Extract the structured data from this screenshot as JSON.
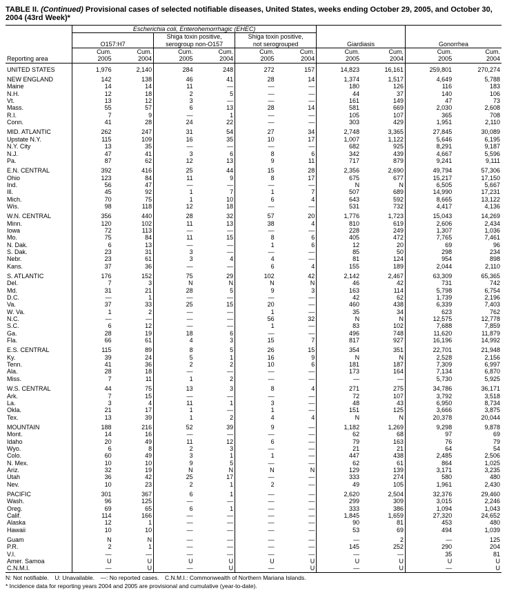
{
  "title": "TABLE II. (Continued) Provisional cases of selected notifiable diseases, United States, weeks ending October 29, 2005, and October 30, 2004 (43rd Week)*",
  "super_header": "Escherichia coli, Enterohemorrhagic (EHEC)",
  "groups": [
    "O157:H7",
    "Shiga toxin positive, serogroup non-O157",
    "Shiga toxin positive, not serogrouped",
    "Giardiasis",
    "Gonorrhea"
  ],
  "col_labels": {
    "area": "Reporting area",
    "c05": "Cum. 2005",
    "c04": "Cum. 2004"
  },
  "footnotes": [
    "N: Not notifiable. U: Unavailable. —: No reported cases. C.N.M.I.: Commonwealth of Northern Mariana Islands.",
    "* Incidence data for reporting years 2004 and 2005 are provisional and cumulative (year-to-date)."
  ],
  "sections": [
    [
      [
        "UNITED STATES",
        "1,976",
        "2,140",
        "284",
        "248",
        "272",
        "157",
        "14,823",
        "16,161",
        "259,801",
        "270,274"
      ]
    ],
    [
      [
        "NEW ENGLAND",
        "142",
        "138",
        "46",
        "41",
        "28",
        "14",
        "1,374",
        "1,517",
        "4,649",
        "5,788"
      ],
      [
        "Maine",
        "14",
        "14",
        "11",
        "—",
        "—",
        "—",
        "180",
        "126",
        "116",
        "183"
      ],
      [
        "N.H.",
        "12",
        "18",
        "2",
        "5",
        "—",
        "—",
        "44",
        "37",
        "140",
        "106"
      ],
      [
        "Vt.",
        "13",
        "12",
        "3",
        "—",
        "—",
        "—",
        "161",
        "149",
        "47",
        "73"
      ],
      [
        "Mass.",
        "55",
        "57",
        "6",
        "13",
        "28",
        "14",
        "581",
        "669",
        "2,030",
        "2,608"
      ],
      [
        "R.I.",
        "7",
        "9",
        "—",
        "1",
        "—",
        "—",
        "105",
        "107",
        "365",
        "708"
      ],
      [
        "Conn.",
        "41",
        "28",
        "24",
        "22",
        "—",
        "—",
        "303",
        "429",
        "1,951",
        "2,110"
      ]
    ],
    [
      [
        "MID. ATLANTIC",
        "262",
        "247",
        "31",
        "54",
        "27",
        "34",
        "2,748",
        "3,365",
        "27,845",
        "30,089"
      ],
      [
        "Upstate N.Y.",
        "115",
        "109",
        "16",
        "35",
        "10",
        "17",
        "1,007",
        "1,122",
        "5,646",
        "6,195"
      ],
      [
        "N.Y. City",
        "13",
        "35",
        "—",
        "—",
        "—",
        "—",
        "682",
        "925",
        "8,291",
        "9,187"
      ],
      [
        "N.J.",
        "47",
        "41",
        "3",
        "6",
        "8",
        "6",
        "342",
        "439",
        "4,667",
        "5,596"
      ],
      [
        "Pa.",
        "87",
        "62",
        "12",
        "13",
        "9",
        "11",
        "717",
        "879",
        "9,241",
        "9,111"
      ]
    ],
    [
      [
        "E.N. CENTRAL",
        "392",
        "416",
        "25",
        "44",
        "15",
        "28",
        "2,356",
        "2,690",
        "49,794",
        "57,306"
      ],
      [
        "Ohio",
        "123",
        "84",
        "11",
        "9",
        "8",
        "17",
        "675",
        "677",
        "15,217",
        "17,150"
      ],
      [
        "Ind.",
        "56",
        "47",
        "—",
        "—",
        "—",
        "—",
        "N",
        "N",
        "6,505",
        "5,667"
      ],
      [
        "Ill.",
        "45",
        "92",
        "1",
        "7",
        "1",
        "7",
        "507",
        "689",
        "14,990",
        "17,231"
      ],
      [
        "Mich.",
        "70",
        "75",
        "1",
        "10",
        "6",
        "4",
        "643",
        "592",
        "8,665",
        "13,122"
      ],
      [
        "Wis.",
        "98",
        "118",
        "12",
        "18",
        "—",
        "—",
        "531",
        "732",
        "4,417",
        "4,136"
      ]
    ],
    [
      [
        "W.N. CENTRAL",
        "356",
        "440",
        "28",
        "32",
        "57",
        "20",
        "1,776",
        "1,723",
        "15,043",
        "14,269"
      ],
      [
        "Minn.",
        "120",
        "102",
        "11",
        "13",
        "38",
        "4",
        "810",
        "619",
        "2,606",
        "2,434"
      ],
      [
        "Iowa",
        "72",
        "113",
        "—",
        "—",
        "—",
        "—",
        "228",
        "249",
        "1,307",
        "1,036"
      ],
      [
        "Mo.",
        "75",
        "84",
        "11",
        "15",
        "8",
        "6",
        "405",
        "472",
        "7,765",
        "7,461"
      ],
      [
        "N. Dak.",
        "6",
        "13",
        "—",
        "—",
        "1",
        "6",
        "12",
        "20",
        "69",
        "96"
      ],
      [
        "S. Dak.",
        "23",
        "31",
        "3",
        "—",
        "—",
        "—",
        "85",
        "50",
        "298",
        "234"
      ],
      [
        "Nebr.",
        "23",
        "61",
        "3",
        "4",
        "4",
        "—",
        "81",
        "124",
        "954",
        "898"
      ],
      [
        "Kans.",
        "37",
        "36",
        "—",
        "—",
        "6",
        "4",
        "155",
        "189",
        "2,044",
        "2,110"
      ]
    ],
    [
      [
        "S. ATLANTIC",
        "176",
        "152",
        "75",
        "29",
        "102",
        "42",
        "2,142",
        "2,467",
        "63,309",
        "65,365"
      ],
      [
        "Del.",
        "7",
        "3",
        "N",
        "N",
        "N",
        "N",
        "46",
        "42",
        "731",
        "742"
      ],
      [
        "Md.",
        "31",
        "21",
        "28",
        "5",
        "9",
        "3",
        "163",
        "114",
        "5,798",
        "6,754"
      ],
      [
        "D.C.",
        "—",
        "1",
        "—",
        "—",
        "—",
        "—",
        "42",
        "62",
        "1,739",
        "2,196"
      ],
      [
        "Va.",
        "37",
        "33",
        "25",
        "15",
        "20",
        "—",
        "460",
        "438",
        "6,339",
        "7,403"
      ],
      [
        "W. Va.",
        "1",
        "2",
        "—",
        "—",
        "1",
        "—",
        "35",
        "34",
        "623",
        "762"
      ],
      [
        "N.C.",
        "—",
        "—",
        "—",
        "—",
        "56",
        "32",
        "N",
        "N",
        "12,575",
        "12,778"
      ],
      [
        "S.C.",
        "6",
        "12",
        "—",
        "—",
        "1",
        "—",
        "83",
        "102",
        "7,688",
        "7,859"
      ],
      [
        "Ga.",
        "28",
        "19",
        "18",
        "6",
        "—",
        "—",
        "496",
        "748",
        "11,620",
        "11,879"
      ],
      [
        "Fla.",
        "66",
        "61",
        "4",
        "3",
        "15",
        "7",
        "817",
        "927",
        "16,196",
        "14,992"
      ]
    ],
    [
      [
        "E.S. CENTRAL",
        "115",
        "89",
        "8",
        "5",
        "26",
        "15",
        "354",
        "351",
        "22,701",
        "21,948"
      ],
      [
        "Ky.",
        "39",
        "24",
        "5",
        "1",
        "16",
        "9",
        "N",
        "N",
        "2,528",
        "2,156"
      ],
      [
        "Tenn.",
        "41",
        "36",
        "2",
        "2",
        "10",
        "6",
        "181",
        "187",
        "7,309",
        "6,997"
      ],
      [
        "Ala.",
        "28",
        "18",
        "—",
        "—",
        "—",
        "—",
        "173",
        "164",
        "7,134",
        "6,870"
      ],
      [
        "Miss.",
        "7",
        "11",
        "1",
        "2",
        "—",
        "—",
        "—",
        "—",
        "5,730",
        "5,925"
      ]
    ],
    [
      [
        "W.S. CENTRAL",
        "44",
        "75",
        "13",
        "3",
        "8",
        "4",
        "271",
        "275",
        "34,786",
        "36,171"
      ],
      [
        "Ark.",
        "7",
        "15",
        "—",
        "—",
        "—",
        "—",
        "72",
        "107",
        "3,792",
        "3,518"
      ],
      [
        "La.",
        "3",
        "4",
        "11",
        "1",
        "3",
        "—",
        "48",
        "43",
        "6,950",
        "8,734"
      ],
      [
        "Okla.",
        "21",
        "17",
        "1",
        "—",
        "1",
        "—",
        "151",
        "125",
        "3,666",
        "3,875"
      ],
      [
        "Tex.",
        "13",
        "39",
        "1",
        "2",
        "4",
        "4",
        "N",
        "N",
        "20,378",
        "20,044"
      ]
    ],
    [
      [
        "MOUNTAIN",
        "188",
        "216",
        "52",
        "39",
        "9",
        "—",
        "1,182",
        "1,269",
        "9,298",
        "9,878"
      ],
      [
        "Mont.",
        "14",
        "16",
        "—",
        "—",
        "—",
        "—",
        "62",
        "68",
        "97",
        "69"
      ],
      [
        "Idaho",
        "20",
        "49",
        "11",
        "12",
        "6",
        "—",
        "79",
        "163",
        "76",
        "79"
      ],
      [
        "Wyo.",
        "6",
        "8",
        "2",
        "3",
        "—",
        "—",
        "21",
        "21",
        "64",
        "54"
      ],
      [
        "Colo.",
        "60",
        "49",
        "3",
        "1",
        "1",
        "—",
        "447",
        "438",
        "2,485",
        "2,506"
      ],
      [
        "N. Mex.",
        "10",
        "10",
        "9",
        "5",
        "—",
        "—",
        "62",
        "61",
        "864",
        "1,025"
      ],
      [
        "Ariz.",
        "32",
        "19",
        "N",
        "N",
        "N",
        "N",
        "129",
        "139",
        "3,171",
        "3,235"
      ],
      [
        "Utah",
        "36",
        "42",
        "25",
        "17",
        "—",
        "—",
        "333",
        "274",
        "580",
        "480"
      ],
      [
        "Nev.",
        "10",
        "23",
        "2",
        "1",
        "2",
        "—",
        "49",
        "105",
        "1,961",
        "2,430"
      ]
    ],
    [
      [
        "PACIFIC",
        "301",
        "367",
        "6",
        "1",
        "—",
        "—",
        "2,620",
        "2,504",
        "32,376",
        "29,460"
      ],
      [
        "Wash.",
        "96",
        "125",
        "—",
        "—",
        "—",
        "—",
        "299",
        "309",
        "3,015",
        "2,246"
      ],
      [
        "Oreg.",
        "69",
        "65",
        "6",
        "1",
        "—",
        "—",
        "333",
        "386",
        "1,094",
        "1,043"
      ],
      [
        "Calif.",
        "114",
        "166",
        "—",
        "—",
        "—",
        "—",
        "1,845",
        "1,659",
        "27,320",
        "24,652"
      ],
      [
        "Alaska",
        "12",
        "1",
        "—",
        "—",
        "—",
        "—",
        "90",
        "81",
        "453",
        "480"
      ],
      [
        "Hawaii",
        "10",
        "10",
        "—",
        "—",
        "—",
        "—",
        "53",
        "69",
        "494",
        "1,039"
      ]
    ],
    [
      [
        "Guam",
        "N",
        "N",
        "—",
        "—",
        "—",
        "—",
        "—",
        "2",
        "—",
        "125"
      ],
      [
        "P.R.",
        "2",
        "1",
        "—",
        "—",
        "—",
        "—",
        "145",
        "252",
        "290",
        "204"
      ],
      [
        "V.I.",
        "—",
        "—",
        "—",
        "—",
        "—",
        "—",
        "—",
        "—",
        "35",
        "81"
      ],
      [
        "Amer. Samoa",
        "U",
        "U",
        "U",
        "U",
        "U",
        "U",
        "U",
        "U",
        "U",
        "U"
      ],
      [
        "C.N.M.I.",
        "—",
        "U",
        "—",
        "U",
        "—",
        "U",
        "—",
        "U",
        "—",
        "U"
      ]
    ]
  ]
}
